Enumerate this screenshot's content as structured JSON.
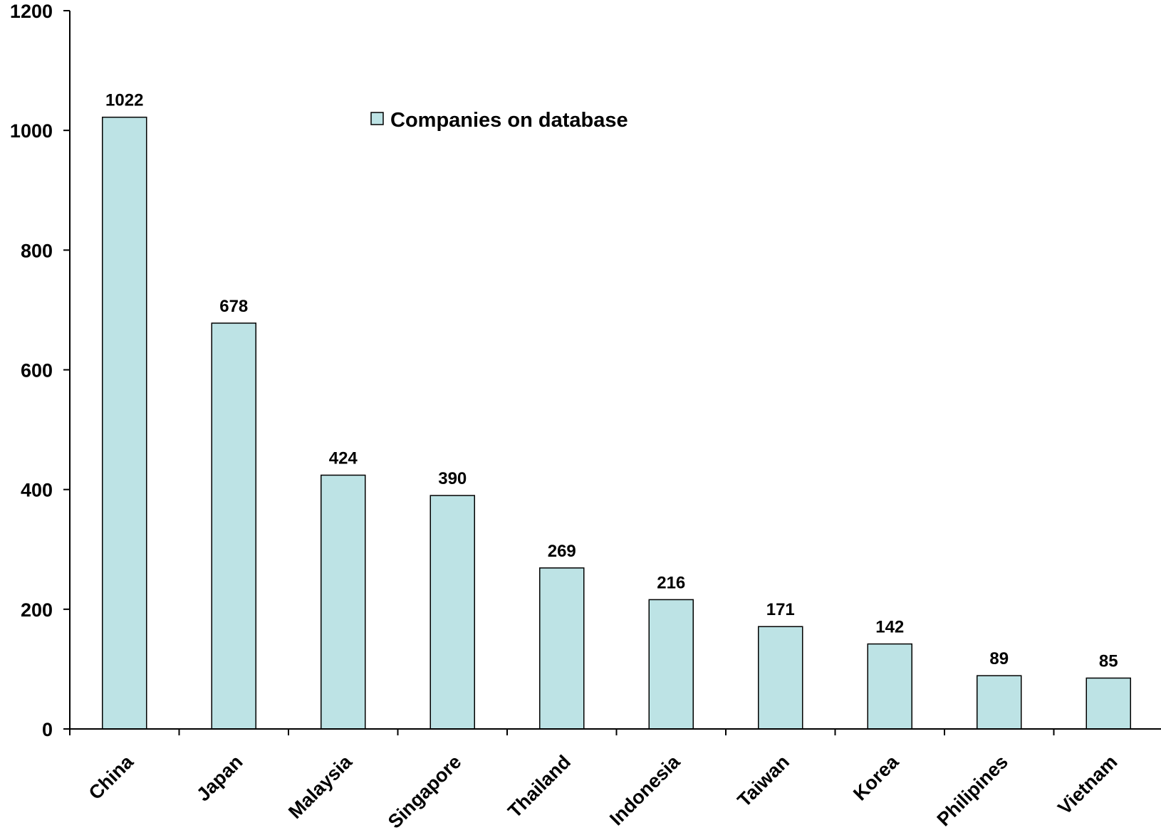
{
  "chart_data": {
    "type": "bar",
    "categories": [
      "China",
      "Japan",
      "Malaysia",
      "Singapore",
      "Thailand",
      "Indonesia",
      "Taiwan",
      "Korea",
      "Philipines",
      "Vietnam"
    ],
    "series": [
      {
        "name": "Companies on database",
        "values": [
          1022,
          678,
          424,
          390,
          269,
          216,
          171,
          142,
          89,
          85
        ],
        "color": "#bde3e5"
      }
    ],
    "title": "",
    "xlabel": "",
    "ylabel": "",
    "ylim": [
      0,
      1200
    ],
    "yticks": [
      "0",
      "200",
      "400",
      "600",
      "800",
      "1000",
      "1200"
    ],
    "grid": false,
    "legend_position": "top-center",
    "data_labels": [
      "1022",
      "678",
      "424",
      "390",
      "269",
      "216",
      "171",
      "142",
      "89",
      "85"
    ]
  }
}
